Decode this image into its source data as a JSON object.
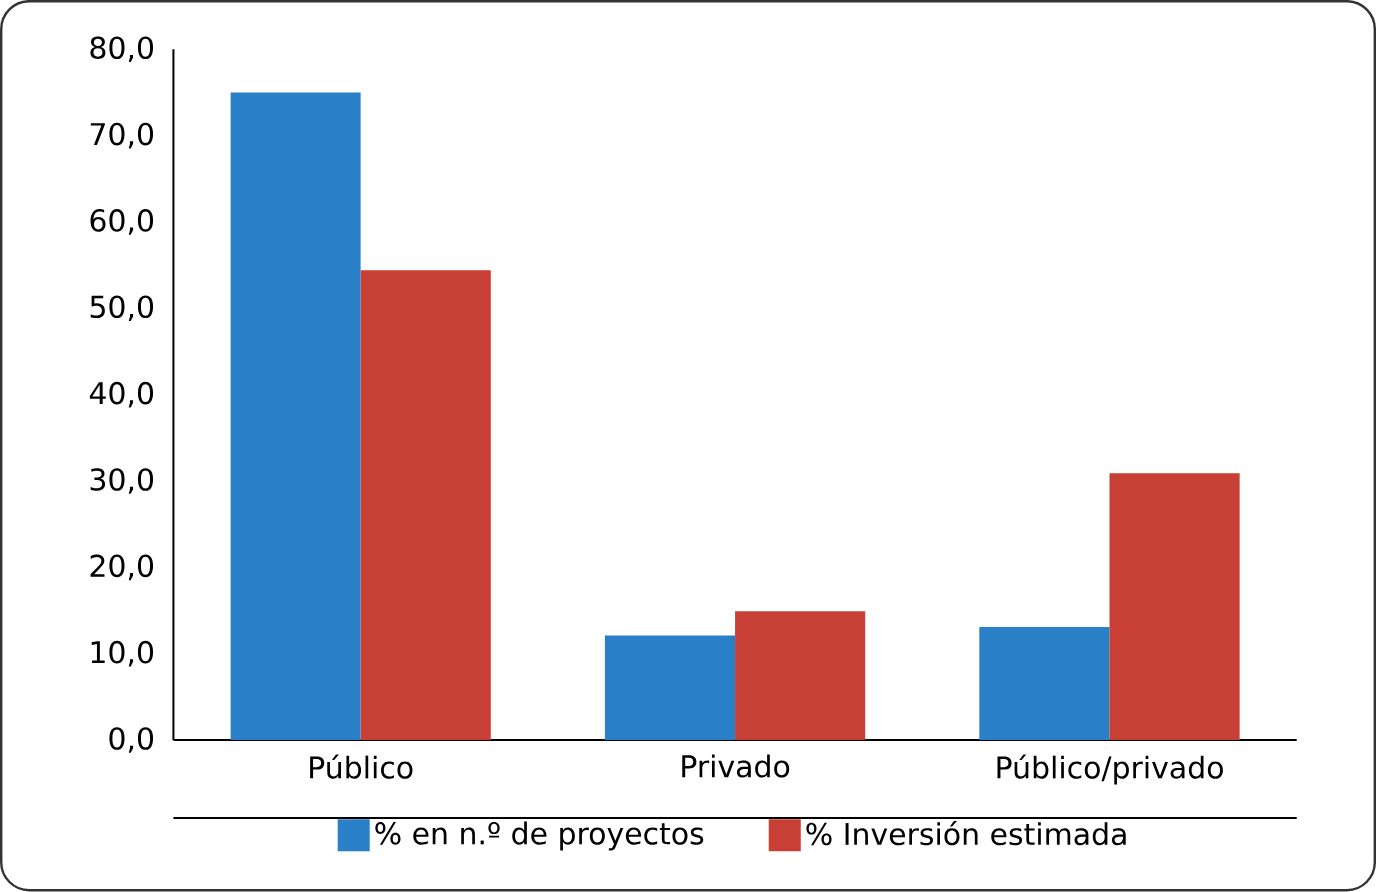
{
  "chart_data": {
    "type": "bar",
    "categories": [
      "Público",
      "Privado",
      "Público/privado"
    ],
    "series": [
      {
        "name": "% en n.º de proyectos",
        "color": "#2980c6",
        "values": [
          75.0,
          12.1,
          13.1
        ]
      },
      {
        "name": "% Inversión estimada",
        "color": "#c84035",
        "values": [
          54.4,
          14.9,
          30.9
        ]
      }
    ],
    "ylim": [
      0,
      80
    ],
    "yticks": [
      {
        "value": 0,
        "label": "0,0"
      },
      {
        "value": 10,
        "label": "10,0"
      },
      {
        "value": 20,
        "label": "20,0"
      },
      {
        "value": 30,
        "label": "30,0"
      },
      {
        "value": 40,
        "label": "40,0"
      },
      {
        "value": 50,
        "label": "50,0"
      },
      {
        "value": 60,
        "label": "60,0"
      },
      {
        "value": 70,
        "label": "70,0"
      },
      {
        "value": 80,
        "label": "80,0"
      }
    ],
    "legend": "bottom"
  }
}
